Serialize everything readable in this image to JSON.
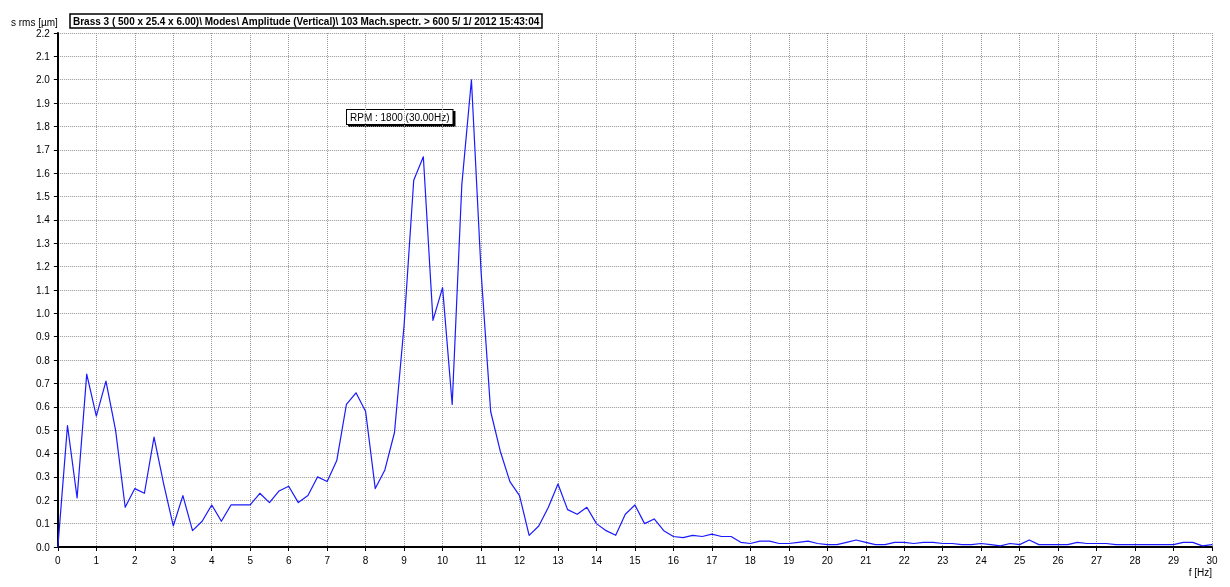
{
  "chart_data": {
    "type": "line",
    "title": "Brass 3 ( 500 x 25.4 x 6.00)\\ Modes\\ Amplitude (Vertical)\\ 103 Mach.spectr. > 600 5/ 1/ 2012 15:43:04",
    "xlabel": "f [Hz]",
    "ylabel": "s rms [µm]",
    "annotations": [
      "RPM : 1800 (30.00Hz)"
    ],
    "x": [
      0,
      0.25,
      0.5,
      0.75,
      1,
      1.25,
      1.5,
      1.75,
      2,
      2.25,
      2.5,
      2.75,
      3,
      3.25,
      3.5,
      3.75,
      4,
      4.25,
      4.5,
      4.75,
      5,
      5.25,
      5.5,
      5.75,
      6,
      6.25,
      6.5,
      6.75,
      7,
      7.25,
      7.5,
      7.75,
      8,
      8.25,
      8.5,
      8.75,
      9,
      9.25,
      9.5,
      9.75,
      10,
      10.25,
      10.5,
      10.75,
      11,
      11.25,
      11.5,
      11.75,
      12,
      12.25,
      12.5,
      12.75,
      13,
      13.25,
      13.5,
      13.75,
      14,
      14.25,
      14.5,
      14.75,
      15,
      15.25,
      15.5,
      15.75,
      16,
      16.25,
      16.5,
      16.75,
      17,
      17.25,
      17.5,
      17.75,
      18,
      18.25,
      18.5,
      18.75,
      19,
      19.25,
      19.5,
      19.75,
      20,
      20.25,
      20.5,
      20.75,
      21,
      21.25,
      21.5,
      21.75,
      22,
      22.25,
      22.5,
      22.75,
      23,
      23.25,
      23.5,
      23.75,
      24,
      24.25,
      24.5,
      24.75,
      25,
      25.25,
      25.5,
      25.75,
      26,
      26.25,
      26.5,
      26.75,
      27,
      27.25,
      27.5,
      27.75,
      28,
      28.25,
      28.5,
      28.75,
      29,
      29.25,
      29.5,
      29.75,
      30
    ],
    "series": [
      {
        "color": "#1a1aff",
        "values": [
          0,
          0.52,
          0.21,
          0.74,
          0.56,
          0.71,
          0.5,
          0.17,
          0.25,
          0.23,
          0.47,
          0.27,
          0.09,
          0.22,
          0.07,
          0.11,
          0.18,
          0.11,
          0.18,
          0.18,
          0.18,
          0.23,
          0.19,
          0.24,
          0.26,
          0.19,
          0.22,
          0.3,
          0.28,
          0.37,
          0.61,
          0.66,
          0.58,
          0.25,
          0.33,
          0.49,
          0.95,
          1.57,
          1.67,
          0.97,
          1.11,
          0.61,
          1.55,
          2.0,
          1.18,
          0.58,
          0.41,
          0.28,
          0.22,
          0.05,
          0.09,
          0.17,
          0.27,
          0.16,
          0.14,
          0.17,
          0.1,
          0.07,
          0.05,
          0.14,
          0.18,
          0.1,
          0.12,
          0.07,
          0.045,
          0.04,
          0.05,
          0.045,
          0.055,
          0.045,
          0.045,
          0.02,
          0.015,
          0.025,
          0.025,
          0.015,
          0.015,
          0.02,
          0.025,
          0.015,
          0.01,
          0.01,
          0.02,
          0.03,
          0.02,
          0.01,
          0.01,
          0.02,
          0.02,
          0.015,
          0.02,
          0.02,
          0.015,
          0.015,
          0.01,
          0.01,
          0.015,
          0.01,
          0.005,
          0.015,
          0.01,
          0.03,
          0.01,
          0.01,
          0.01,
          0.01,
          0.02,
          0.015,
          0.015,
          0.015,
          0.01,
          0.01,
          0.01,
          0.01,
          0.01,
          0.01,
          0.01,
          0.02,
          0.02,
          0.005,
          0.01
        ]
      }
    ],
    "xlim": [
      0,
      30
    ],
    "xticks": [
      0,
      1,
      2,
      3,
      4,
      5,
      6,
      7,
      8,
      9,
      10,
      11,
      12,
      13,
      14,
      15,
      16,
      17,
      18,
      19,
      20,
      21,
      22,
      23,
      24,
      25,
      26,
      27,
      28,
      29,
      30
    ],
    "ylim": [
      0,
      2.2
    ],
    "yticks": [
      {
        "value": 0,
        "label": "0.0"
      },
      {
        "value": 0.1,
        "label": "0.1"
      },
      {
        "value": 0.2,
        "label": "0.2"
      },
      {
        "value": 0.3,
        "label": "0.3"
      },
      {
        "value": 0.4,
        "label": "0.4"
      },
      {
        "value": 0.5,
        "label": "0.5"
      },
      {
        "value": 0.6,
        "label": "0.6"
      },
      {
        "value": 0.7,
        "label": "0.7"
      },
      {
        "value": 0.8,
        "label": "0.8"
      },
      {
        "value": 0.9,
        "label": "0.9"
      },
      {
        "value": 1,
        "label": "1.0"
      },
      {
        "value": 1.1,
        "label": "1.1"
      },
      {
        "value": 1.2,
        "label": "1.2"
      },
      {
        "value": 1.3,
        "label": "1.3"
      },
      {
        "value": 1.4,
        "label": "1.4"
      },
      {
        "value": 1.5,
        "label": "1.5"
      },
      {
        "value": 1.6,
        "label": "1.6"
      },
      {
        "value": 1.7,
        "label": "1.7"
      },
      {
        "value": 1.8,
        "label": "1.8"
      },
      {
        "value": 1.9,
        "label": "1.9"
      },
      {
        "value": 2,
        "label": "2.0"
      },
      {
        "value": 2.1,
        "label": "2.1"
      },
      {
        "value": 2.2,
        "label": "2.2"
      }
    ],
    "grid": true,
    "marker": "none",
    "line_style": "solid"
  }
}
